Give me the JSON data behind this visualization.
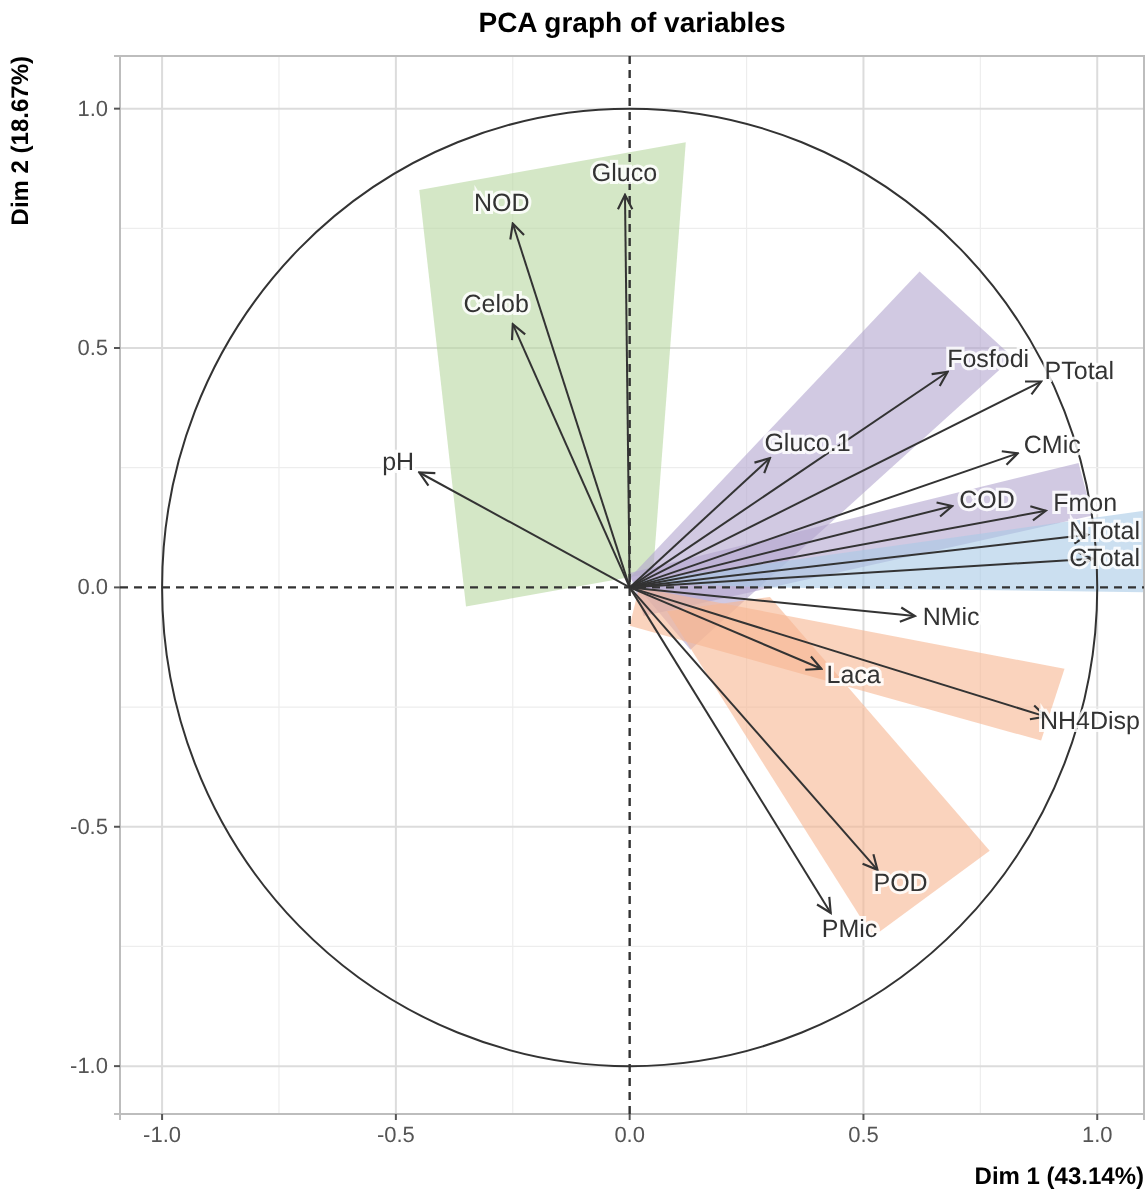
{
  "chart_data": {
    "type": "line",
    "title": "PCA graph of variables",
    "xlabel": "Dim 1 (43.14%)",
    "ylabel": "Dim 2 (18.67%)",
    "xlim": [
      -1.09,
      1.1
    ],
    "ylim": [
      -1.1,
      1.11
    ],
    "xticks": [
      {
        "value": -1.0,
        "label": "-1.0"
      },
      {
        "value": -0.75,
        "label": null
      },
      {
        "value": -0.5,
        "label": "-0.5"
      },
      {
        "value": -0.25,
        "label": null
      },
      {
        "value": 0.0,
        "label": "0.0"
      },
      {
        "value": 0.25,
        "label": null
      },
      {
        "value": 0.5,
        "label": "0.5"
      },
      {
        "value": 0.75,
        "label": null
      },
      {
        "value": 1.0,
        "label": "1.0"
      }
    ],
    "yticks": [
      {
        "value": -1.0,
        "label": "-1.0"
      },
      {
        "value": -0.75,
        "label": null
      },
      {
        "value": -0.5,
        "label": "-0.5"
      },
      {
        "value": -0.25,
        "label": null
      },
      {
        "value": 0.0,
        "label": "0.0"
      },
      {
        "value": 0.25,
        "label": null
      },
      {
        "value": 0.5,
        "label": "0.5"
      },
      {
        "value": 0.75,
        "label": null
      },
      {
        "value": 1.0,
        "label": "1.0"
      }
    ],
    "grid": true,
    "series": [
      {
        "name": "Gluco",
        "color": "#333333",
        "x": [
          0,
          -0.01
        ],
        "values": [
          0,
          0.82
        ]
      },
      {
        "name": "NOD",
        "color": "#333333",
        "x": [
          0,
          -0.25
        ],
        "values": [
          0,
          0.76
        ]
      },
      {
        "name": "Celob",
        "color": "#333333",
        "x": [
          0,
          -0.25
        ],
        "values": [
          0,
          0.55
        ]
      },
      {
        "name": "pH",
        "color": "#333333",
        "x": [
          0,
          -0.45
        ],
        "values": [
          0,
          0.24
        ]
      },
      {
        "name": "Fosfodi",
        "color": "#333333",
        "x": [
          0,
          0.68
        ],
        "values": [
          0,
          0.45
        ]
      },
      {
        "name": "PTotal",
        "color": "#333333",
        "x": [
          0,
          0.88
        ],
        "values": [
          0,
          0.43
        ]
      },
      {
        "name": "Gluco.1",
        "color": "#333333",
        "x": [
          0,
          0.3
        ],
        "values": [
          0,
          0.27
        ]
      },
      {
        "name": "CMic",
        "color": "#333333",
        "x": [
          0,
          0.83
        ],
        "values": [
          0,
          0.28
        ]
      },
      {
        "name": "Fmon",
        "color": "#333333",
        "x": [
          0,
          0.89
        ],
        "values": [
          0,
          0.16
        ]
      },
      {
        "name": "COD",
        "color": "#333333",
        "x": [
          0,
          0.69
        ],
        "values": [
          0,
          0.17
        ]
      },
      {
        "name": "NTotal",
        "color": "#333333",
        "x": [
          0,
          0.98
        ],
        "values": [
          0,
          0.11
        ]
      },
      {
        "name": "CTotal",
        "color": "#333333",
        "x": [
          0,
          0.99
        ],
        "values": [
          0,
          0.06
        ]
      },
      {
        "name": "NMic",
        "color": "#333333",
        "x": [
          0,
          0.61
        ],
        "values": [
          0,
          -0.06
        ]
      },
      {
        "name": "Laca",
        "color": "#333333",
        "x": [
          0,
          0.41
        ],
        "values": [
          0,
          -0.17
        ]
      },
      {
        "name": "NH4Disp",
        "color": "#333333",
        "x": [
          0,
          0.89
        ],
        "values": [
          0,
          -0.27
        ]
      },
      {
        "name": "POD",
        "color": "#333333",
        "x": [
          0,
          0.53
        ],
        "values": [
          0,
          -0.59
        ]
      },
      {
        "name": "PMic",
        "color": "#333333",
        "x": [
          0,
          0.43
        ],
        "values": [
          0,
          -0.68
        ]
      }
    ]
  }
}
